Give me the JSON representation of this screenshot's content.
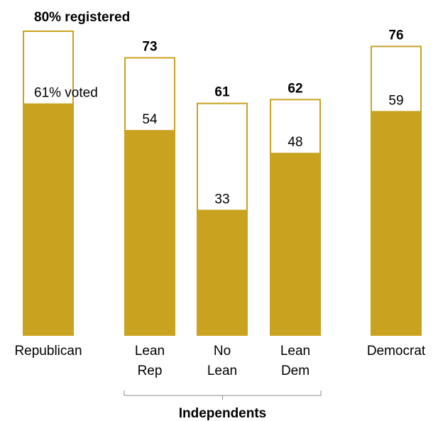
{
  "chart_data": {
    "type": "bar",
    "categories": [
      {
        "lines": [
          "Republican"
        ]
      },
      {
        "lines": [
          "Lean",
          "Rep"
        ]
      },
      {
        "lines": [
          "No",
          "Lean"
        ]
      },
      {
        "lines": [
          "Lean",
          "Dem"
        ]
      },
      {
        "lines": [
          "Democrat"
        ]
      }
    ],
    "series": [
      {
        "name": "registered",
        "values": [
          80,
          73,
          61,
          62,
          76
        ]
      },
      {
        "name": "voted",
        "values": [
          61,
          54,
          33,
          48,
          59
        ]
      }
    ],
    "registered_labels": [
      "80% registered",
      "73",
      "61",
      "62",
      "76"
    ],
    "voted_labels": [
      "61% voted",
      "54",
      "33",
      "48",
      "59"
    ],
    "group": {
      "label": "Independents",
      "members": [
        1,
        2,
        3
      ]
    },
    "ylim": [
      0,
      100
    ],
    "colors": {
      "voted_fill": "#c9a220",
      "registered_outline": "#c9a220",
      "registered_fill": "#ffffff",
      "bracket": "#8c8c8c"
    }
  }
}
